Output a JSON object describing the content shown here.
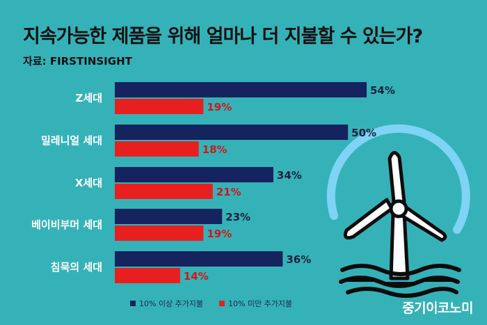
{
  "title": "지속가능한 제품을 위해 얼마나 더 지불할 수 있는가?",
  "source": "자료: FIRSTINSIGHT",
  "watermark": "중기이코노미",
  "colors": {
    "background": "#35b2b8",
    "series1": "#15235e",
    "series2": "#e81f1f",
    "turbine_stroke": "#0c0c0c",
    "turbine_fill": "#ffffff",
    "arc": "#7fd3f5"
  },
  "chart_data": {
    "type": "bar",
    "orientation": "horizontal",
    "title": "지속가능한 제품을 위해 얼마나 더 지불할 수 있는가?",
    "categories": [
      "Z세대",
      "밀레니얼 세대",
      "X세대",
      "베이비부머 세대",
      "침묵의 세대"
    ],
    "series": [
      {
        "name": "10% 이상 추가지불",
        "values": [
          54,
          50,
          34,
          23,
          36
        ],
        "labels": [
          "54%",
          "50%",
          "34%",
          "23%",
          "36%"
        ]
      },
      {
        "name": "10% 미만 추가지불",
        "values": [
          19,
          18,
          21,
          19,
          14
        ],
        "labels": [
          "19%",
          "18%",
          "21%",
          "19%",
          "14%"
        ]
      }
    ],
    "xlim": [
      0,
      54
    ],
    "grid": false,
    "legend": "bottom"
  }
}
